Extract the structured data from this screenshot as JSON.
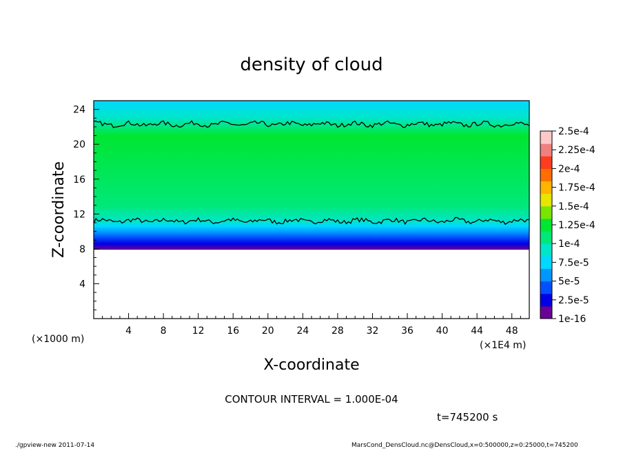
{
  "chart_data": {
    "type": "heatmap",
    "title": "density of cloud",
    "xlabel": "X-coordinate",
    "ylabel": "Z-coordinate",
    "x_unit": "(×1E4 m)",
    "y_unit": "(×1000 m)",
    "xlim": [
      0,
      50
    ],
    "ylim": [
      0,
      25
    ],
    "x_ticks": [
      4,
      8,
      12,
      16,
      20,
      24,
      28,
      32,
      36,
      40,
      44,
      48
    ],
    "y_ticks": [
      4,
      8,
      12,
      16,
      20,
      24
    ],
    "colorbar": {
      "labels": [
        "1e-16",
        "2.5e-5",
        "5e-5",
        "7.5e-5",
        "1e-4",
        "1.25e-4",
        "1.5e-4",
        "1.75e-4",
        "2e-4",
        "2.25e-4",
        "2.5e-4"
      ],
      "colors": [
        "#6a0096",
        "#0000e6",
        "#0050ff",
        "#0096ff",
        "#00d8ff",
        "#00e6c8",
        "#00e878",
        "#00e632",
        "#78e600",
        "#e6e600",
        "#ffb400",
        "#ff6e00",
        "#ff3c1e",
        "#f08080",
        "#ffc8c8"
      ]
    },
    "vertical_profile": [
      {
        "z": 7.9,
        "color": "#6a0096"
      },
      {
        "z": 8.6,
        "color": "#0000e6"
      },
      {
        "z": 9.3,
        "color": "#0050ff"
      },
      {
        "z": 9.9,
        "color": "#0096ff"
      },
      {
        "z": 10.6,
        "color": "#00d8ff"
      },
      {
        "z": 11.2,
        "color": "#00e6c8"
      },
      {
        "z": 13.0,
        "color": "#00e878"
      },
      {
        "z": 21.0,
        "color": "#00e632"
      },
      {
        "z": 23.0,
        "color": "#00e6c8"
      },
      {
        "z": 25.0,
        "color": "#00d8ff"
      }
    ],
    "contour_level": 0.0001,
    "contour_z": [
      11.2,
      22.3
    ]
  },
  "annotations": {
    "contour_interval": "CONTOUR INTERVAL = 1.000E-04",
    "time": "t=745200 s"
  },
  "footer": {
    "left": "./gpview-new  2011-07-14",
    "right": "MarsCond_DensCloud.nc@DensCloud,x=0:500000,z=0:25000,t=745200"
  }
}
